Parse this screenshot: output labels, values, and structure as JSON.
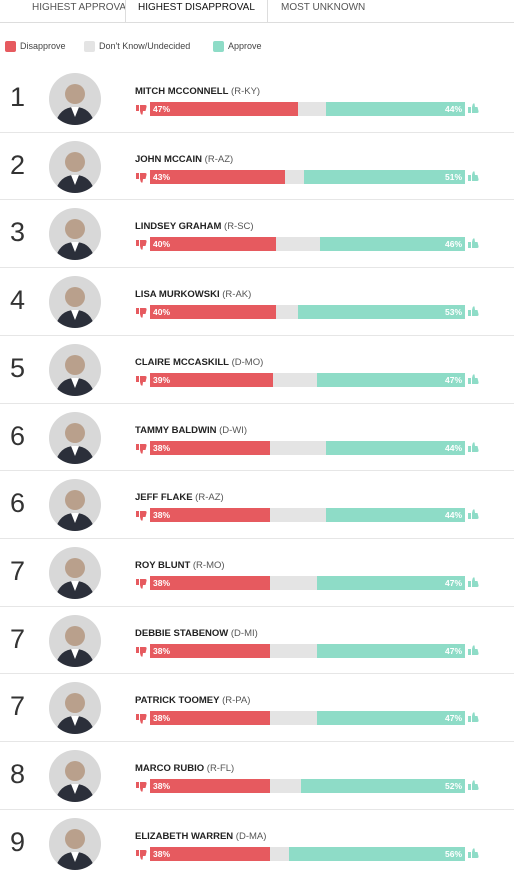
{
  "tabs": [
    "HIGHEST APPROVAL",
    "HIGHEST DISAPPROVAL",
    "MOST UNKNOWN"
  ],
  "active_tab": 1,
  "legend": [
    {
      "label": "Disapprove",
      "color": "#e65a5f"
    },
    {
      "label": "Don't Know/Undecided",
      "color": "#e4e4e4"
    },
    {
      "label": "Approve",
      "color": "#8edcc7"
    }
  ],
  "rows": [
    {
      "rank": "1",
      "name": "MITCH MCCONNELL",
      "party": "(R-KY)",
      "disapprove": {
        "value": 47,
        "label": "47%"
      },
      "approve": {
        "value": 44,
        "label": "44%"
      }
    },
    {
      "rank": "2",
      "name": "JOHN MCCAIN",
      "party": "(R-AZ)",
      "disapprove": {
        "value": 43,
        "label": "43%"
      },
      "approve": {
        "value": 51,
        "label": "51%"
      }
    },
    {
      "rank": "3",
      "name": "LINDSEY GRAHAM",
      "party": "(R-SC)",
      "disapprove": {
        "value": 40,
        "label": "40%"
      },
      "approve": {
        "value": 46,
        "label": "46%"
      }
    },
    {
      "rank": "4",
      "name": "LISA MURKOWSKI",
      "party": "(R-AK)",
      "disapprove": {
        "value": 40,
        "label": "40%"
      },
      "approve": {
        "value": 53,
        "label": "53%"
      }
    },
    {
      "rank": "5",
      "name": "CLAIRE MCCASKILL",
      "party": "(D-MO)",
      "disapprove": {
        "value": 39,
        "label": "39%"
      },
      "approve": {
        "value": 47,
        "label": "47%"
      }
    },
    {
      "rank": "6",
      "name": "TAMMY BALDWIN",
      "party": "(D-WI)",
      "disapprove": {
        "value": 38,
        "label": "38%"
      },
      "approve": {
        "value": 44,
        "label": "44%"
      }
    },
    {
      "rank": "6",
      "name": "JEFF FLAKE",
      "party": "(R-AZ)",
      "disapprove": {
        "value": 38,
        "label": "38%"
      },
      "approve": {
        "value": 44,
        "label": "44%"
      }
    },
    {
      "rank": "7",
      "name": "ROY BLUNT",
      "party": "(R-MO)",
      "disapprove": {
        "value": 38,
        "label": "38%"
      },
      "approve": {
        "value": 47,
        "label": "47%"
      }
    },
    {
      "rank": "7",
      "name": "DEBBIE STABENOW",
      "party": "(D-MI)",
      "disapprove": {
        "value": 38,
        "label": "38%"
      },
      "approve": {
        "value": 47,
        "label": "47%"
      }
    },
    {
      "rank": "7",
      "name": "PATRICK TOOMEY",
      "party": "(R-PA)",
      "disapprove": {
        "value": 38,
        "label": "38%"
      },
      "approve": {
        "value": 47,
        "label": "47%"
      }
    },
    {
      "rank": "8",
      "name": "MARCO RUBIO",
      "party": "(R-FL)",
      "disapprove": {
        "value": 38,
        "label": "38%"
      },
      "approve": {
        "value": 52,
        "label": "52%"
      }
    },
    {
      "rank": "9",
      "name": "ELIZABETH WARREN",
      "party": "(D-MA)",
      "disapprove": {
        "value": 38,
        "label": "38%"
      },
      "approve": {
        "value": 56,
        "label": "56%"
      }
    }
  ]
}
